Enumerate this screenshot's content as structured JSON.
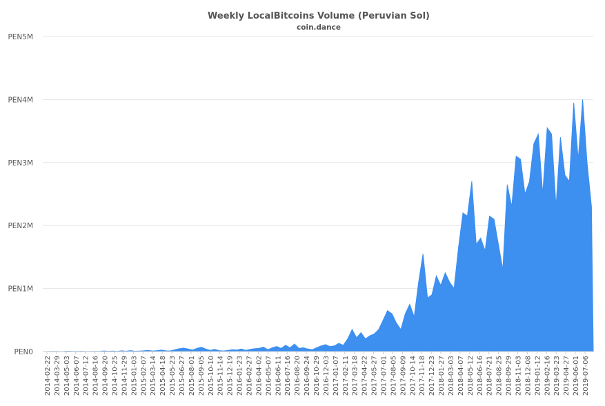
{
  "chart_data": {
    "type": "area",
    "title": "Weekly LocalBitcoins Volume (Peruvian Sol)",
    "subtitle": "coin.dance",
    "xlabel": "",
    "ylabel": "",
    "ylim": [
      0,
      5000000
    ],
    "y_ticks": [
      {
        "value": 0,
        "label": "PEN0"
      },
      {
        "value": 1000000,
        "label": "PEN1M"
      },
      {
        "value": 2000000,
        "label": "PEN2M"
      },
      {
        "value": 3000000,
        "label": "PEN3M"
      },
      {
        "value": 4000000,
        "label": "PEN4M"
      },
      {
        "value": 5000000,
        "label": "PEN5M"
      }
    ],
    "x_ticks": [
      "2014-02-22",
      "2014-03-29",
      "2014-05-03",
      "2014-06-07",
      "2014-07-12",
      "2014-08-16",
      "2014-09-20",
      "2014-10-25",
      "2014-11-29",
      "2015-01-03",
      "2015-02-07",
      "2015-03-14",
      "2015-04-18",
      "2015-05-23",
      "2015-06-27",
      "2015-08-01",
      "2015-09-05",
      "2015-10-10",
      "2015-11-14",
      "2015-12-19",
      "2016-01-23",
      "2016-02-27",
      "2016-04-02",
      "2016-05-07",
      "2016-06-11",
      "2016-07-16",
      "2016-08-20",
      "2016-09-24",
      "2016-10-29",
      "2016-12-03",
      "2017-01-07",
      "2017-02-11",
      "2017-03-18",
      "2017-04-22",
      "2017-05-27",
      "2017-07-01",
      "2017-08-05",
      "2017-09-09",
      "2017-10-14",
      "2017-11-18",
      "2017-12-23",
      "2018-01-27",
      "2018-03-03",
      "2018-04-07",
      "2018-05-12",
      "2018-06-16",
      "2018-07-21",
      "2018-08-25",
      "2018-09-29",
      "2018-11-03",
      "2018-12-08",
      "2019-01-12",
      "2019-02-16",
      "2019-03-23",
      "2019-04-27",
      "2019-06-01",
      "2019-07-06"
    ],
    "series": [
      {
        "color": "#3d8ff0",
        "points": [
          [
            0,
            0
          ],
          [
            5,
            2000
          ],
          [
            10,
            3000
          ],
          [
            15,
            1000
          ],
          [
            20,
            2000
          ],
          [
            25,
            5000
          ],
          [
            30,
            2000
          ],
          [
            35,
            3000
          ],
          [
            40,
            4000
          ],
          [
            45,
            1000
          ],
          [
            50,
            2000
          ],
          [
            55,
            3000
          ],
          [
            60,
            2000
          ],
          [
            65,
            10000
          ],
          [
            70,
            4000
          ],
          [
            75,
            8000
          ],
          [
            80,
            3000
          ],
          [
            85,
            12000
          ],
          [
            90,
            5000
          ],
          [
            95,
            15000
          ],
          [
            100,
            6000
          ],
          [
            105,
            8000
          ],
          [
            110,
            12000
          ],
          [
            115,
            20000
          ],
          [
            120,
            8000
          ],
          [
            125,
            15000
          ],
          [
            130,
            25000
          ],
          [
            135,
            12000
          ],
          [
            140,
            10000
          ],
          [
            145,
            30000
          ],
          [
            150,
            45000
          ],
          [
            155,
            55000
          ],
          [
            160,
            40000
          ],
          [
            165,
            25000
          ],
          [
            170,
            50000
          ],
          [
            175,
            70000
          ],
          [
            180,
            40000
          ],
          [
            185,
            20000
          ],
          [
            190,
            35000
          ],
          [
            195,
            15000
          ],
          [
            200,
            10000
          ],
          [
            205,
            20000
          ],
          [
            210,
            30000
          ],
          [
            215,
            25000
          ],
          [
            220,
            40000
          ],
          [
            225,
            20000
          ],
          [
            230,
            35000
          ],
          [
            235,
            45000
          ],
          [
            240,
            50000
          ],
          [
            245,
            70000
          ],
          [
            250,
            30000
          ],
          [
            255,
            60000
          ],
          [
            260,
            80000
          ],
          [
            265,
            50000
          ],
          [
            270,
            100000
          ],
          [
            275,
            60000
          ],
          [
            280,
            120000
          ],
          [
            285,
            50000
          ],
          [
            290,
            60000
          ],
          [
            295,
            40000
          ],
          [
            300,
            30000
          ],
          [
            305,
            60000
          ],
          [
            310,
            90000
          ],
          [
            315,
            110000
          ],
          [
            320,
            80000
          ],
          [
            325,
            90000
          ],
          [
            330,
            130000
          ],
          [
            335,
            100000
          ],
          [
            340,
            200000
          ],
          [
            345,
            350000
          ],
          [
            350,
            220000
          ],
          [
            355,
            300000
          ],
          [
            360,
            200000
          ],
          [
            365,
            250000
          ],
          [
            370,
            280000
          ],
          [
            375,
            350000
          ],
          [
            380,
            500000
          ],
          [
            385,
            650000
          ],
          [
            390,
            600000
          ],
          [
            395,
            450000
          ],
          [
            400,
            350000
          ],
          [
            405,
            600000
          ],
          [
            410,
            750000
          ],
          [
            415,
            550000
          ],
          [
            420,
            1100000
          ],
          [
            425,
            1550000
          ],
          [
            430,
            850000
          ],
          [
            435,
            900000
          ],
          [
            440,
            1200000
          ],
          [
            445,
            1050000
          ],
          [
            450,
            1250000
          ],
          [
            455,
            1100000
          ],
          [
            460,
            1000000
          ],
          [
            465,
            1650000
          ],
          [
            470,
            2200000
          ],
          [
            475,
            2150000
          ],
          [
            480,
            2700000
          ],
          [
            485,
            1700000
          ],
          [
            490,
            1800000
          ],
          [
            495,
            1600000
          ],
          [
            500,
            2150000
          ],
          [
            505,
            2100000
          ],
          [
            510,
            1700000
          ],
          [
            515,
            1300000
          ],
          [
            520,
            2650000
          ],
          [
            525,
            2300000
          ],
          [
            530,
            3100000
          ],
          [
            535,
            3050000
          ],
          [
            540,
            2500000
          ],
          [
            545,
            2700000
          ],
          [
            550,
            3300000
          ],
          [
            555,
            3450000
          ],
          [
            560,
            2500000
          ],
          [
            565,
            3550000
          ],
          [
            570,
            3450000
          ],
          [
            575,
            2300000
          ],
          [
            580,
            3400000
          ],
          [
            585,
            2800000
          ],
          [
            590,
            2700000
          ],
          [
            595,
            3950000
          ],
          [
            600,
            3050000
          ],
          [
            605,
            4000000
          ],
          [
            610,
            3000000
          ],
          [
            615,
            2300000
          ],
          [
            617,
            0
          ]
        ]
      }
    ]
  }
}
